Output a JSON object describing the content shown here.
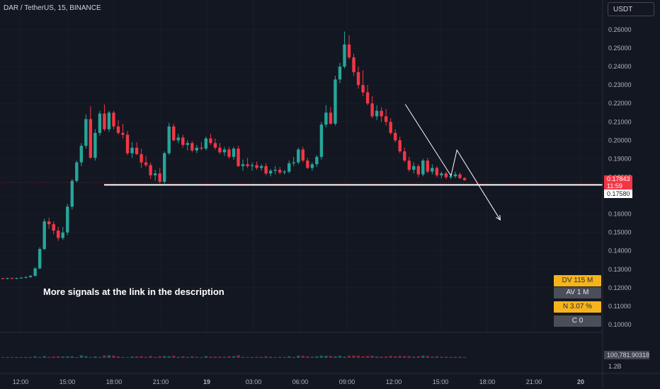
{
  "header": {
    "symbol": "DAR / TetherUS, 15, BINANCE",
    "currency": "USDT"
  },
  "annotation": "More signals at the link in the description",
  "stats": [
    {
      "label": "DV 115 M",
      "color": "#f5b41b"
    },
    {
      "label": "AV 1 M",
      "color": "#4a4e59"
    },
    {
      "label": "N 3.07 %",
      "color": "#f5b41b"
    },
    {
      "label": "C  0",
      "color": "#4a4e59"
    }
  ],
  "price_tags": {
    "current": "0.17843",
    "countdown": "11:59",
    "level": "0.17580"
  },
  "volume": {
    "last": "100,781.90318",
    "axis_max": "1.2B"
  },
  "colors": {
    "background": "#131722",
    "up": "#26a69a",
    "down": "#f23645",
    "grid": "#1e222d",
    "text": "#b2b5be"
  },
  "chart_data": {
    "type": "candlestick",
    "title": "DAR / TetherUS, 15, BINANCE",
    "y_axis": {
      "ticks": [
        "0.26000",
        "0.25000",
        "0.24000",
        "0.23000",
        "0.22000",
        "0.21000",
        "0.20000",
        "0.19000",
        "0.18000",
        "0.17000",
        "0.16000",
        "0.15000",
        "0.14000",
        "0.13000",
        "0.12000",
        "0.11000",
        "0.10000"
      ],
      "range": [
        0.0975,
        0.2655
      ]
    },
    "x_axis": {
      "ticks": [
        "12:00",
        "15:00",
        "18:00",
        "21:00",
        "19",
        "03:00",
        "06:00",
        "09:00",
        "12:00",
        "15:00",
        "18:00",
        "21:00",
        "20"
      ]
    },
    "horizontal_level": 0.1758,
    "projection_path": [
      {
        "t": 34.1,
        "price": 0.2195
      },
      {
        "t": 38.0,
        "price": 0.1807
      },
      {
        "t": 38.5,
        "price": 0.1947
      },
      {
        "t": 42.2,
        "price": 0.1568
      }
    ],
    "ohlc": [
      [
        0.1251,
        0.1254,
        0.1246,
        0.125
      ],
      [
        0.125,
        0.1254,
        0.1246,
        0.1252
      ],
      [
        0.1252,
        0.1256,
        0.1248,
        0.125
      ],
      [
        0.125,
        0.1254,
        0.1246,
        0.1253
      ],
      [
        0.1253,
        0.1258,
        0.1249,
        0.1255
      ],
      [
        0.1255,
        0.1262,
        0.125,
        0.1258
      ],
      [
        0.1258,
        0.1268,
        0.1253,
        0.1265
      ],
      [
        0.1265,
        0.1312,
        0.126,
        0.1305
      ],
      [
        0.1305,
        0.142,
        0.13,
        0.141
      ],
      [
        0.141,
        0.1575,
        0.1405,
        0.156
      ],
      [
        0.156,
        0.158,
        0.152,
        0.1545
      ],
      [
        0.1545,
        0.156,
        0.149,
        0.151
      ],
      [
        0.151,
        0.153,
        0.1455,
        0.147
      ],
      [
        0.147,
        0.153,
        0.146,
        0.15
      ],
      [
        0.15,
        0.1655,
        0.1485,
        0.164
      ],
      [
        0.164,
        0.179,
        0.1625,
        0.178
      ],
      [
        0.178,
        0.189,
        0.177,
        0.188
      ],
      [
        0.188,
        0.1985,
        0.186,
        0.197
      ],
      [
        0.197,
        0.214,
        0.1955,
        0.2115
      ],
      [
        0.2115,
        0.2185,
        0.19,
        0.1905
      ],
      [
        0.1905,
        0.206,
        0.189,
        0.204
      ],
      [
        0.204,
        0.216,
        0.2025,
        0.2145
      ],
      [
        0.2145,
        0.2195,
        0.205,
        0.206
      ],
      [
        0.206,
        0.216,
        0.2045,
        0.215
      ],
      [
        0.215,
        0.216,
        0.206,
        0.2075
      ],
      [
        0.2075,
        0.211,
        0.203,
        0.204
      ],
      [
        0.204,
        0.209,
        0.201,
        0.203
      ],
      [
        0.203,
        0.205,
        0.192,
        0.193
      ],
      [
        0.193,
        0.199,
        0.1905,
        0.196
      ],
      [
        0.196,
        0.199,
        0.192,
        0.1925
      ],
      [
        0.1925,
        0.1955,
        0.185,
        0.188
      ],
      [
        0.188,
        0.1915,
        0.1855,
        0.1865
      ],
      [
        0.1865,
        0.188,
        0.179,
        0.181
      ],
      [
        0.181,
        0.184,
        0.178,
        0.182
      ],
      [
        0.182,
        0.185,
        0.1765,
        0.1775
      ],
      [
        0.1775,
        0.194,
        0.1765,
        0.193
      ],
      [
        0.193,
        0.2095,
        0.192,
        0.2075
      ],
      [
        0.2075,
        0.209,
        0.1995,
        0.2
      ],
      [
        0.2,
        0.2035,
        0.1985,
        0.2015
      ],
      [
        0.2015,
        0.203,
        0.196,
        0.1975
      ],
      [
        0.1975,
        0.2,
        0.1945,
        0.1985
      ],
      [
        0.1985,
        0.1995,
        0.1935,
        0.1945
      ],
      [
        0.1945,
        0.1975,
        0.193,
        0.196
      ],
      [
        0.196,
        0.199,
        0.1945,
        0.1955
      ],
      [
        0.1955,
        0.202,
        0.1945,
        0.201
      ],
      [
        0.201,
        0.2035,
        0.1975,
        0.1985
      ],
      [
        0.1985,
        0.201,
        0.195,
        0.196
      ],
      [
        0.196,
        0.1985,
        0.1925,
        0.1935
      ],
      [
        0.1935,
        0.1965,
        0.1915,
        0.195
      ],
      [
        0.195,
        0.1965,
        0.19,
        0.191
      ],
      [
        0.191,
        0.1965,
        0.1895,
        0.1955
      ],
      [
        0.1955,
        0.197,
        0.1855,
        0.186
      ],
      [
        0.186,
        0.1895,
        0.1835,
        0.187
      ],
      [
        0.187,
        0.1905,
        0.185,
        0.186
      ],
      [
        0.186,
        0.188,
        0.1835,
        0.1865
      ],
      [
        0.1865,
        0.1885,
        0.184,
        0.185
      ],
      [
        0.185,
        0.187,
        0.1835,
        0.186
      ],
      [
        0.186,
        0.1875,
        0.181,
        0.182
      ],
      [
        0.182,
        0.1845,
        0.1805,
        0.1835
      ],
      [
        0.1835,
        0.186,
        0.1815,
        0.184
      ],
      [
        0.184,
        0.1855,
        0.1815,
        0.1825
      ],
      [
        0.1825,
        0.184,
        0.1815,
        0.183
      ],
      [
        0.183,
        0.189,
        0.182,
        0.1875
      ],
      [
        0.1875,
        0.191,
        0.186,
        0.188
      ],
      [
        0.188,
        0.196,
        0.187,
        0.195
      ],
      [
        0.195,
        0.1965,
        0.188,
        0.189
      ],
      [
        0.189,
        0.1905,
        0.1845,
        0.185
      ],
      [
        0.185,
        0.188,
        0.1835,
        0.187
      ],
      [
        0.187,
        0.192,
        0.1855,
        0.191
      ],
      [
        0.191,
        0.21,
        0.1895,
        0.2085
      ],
      [
        0.2085,
        0.219,
        0.207,
        0.215
      ],
      [
        0.215,
        0.218,
        0.2085,
        0.209
      ],
      [
        0.209,
        0.235,
        0.208,
        0.233
      ],
      [
        0.233,
        0.242,
        0.231,
        0.24
      ],
      [
        0.24,
        0.259,
        0.239,
        0.252
      ],
      [
        0.252,
        0.257,
        0.244,
        0.245
      ],
      [
        0.245,
        0.247,
        0.235,
        0.237
      ],
      [
        0.237,
        0.24,
        0.228,
        0.23
      ],
      [
        0.23,
        0.238,
        0.224,
        0.226
      ],
      [
        0.226,
        0.23,
        0.219,
        0.22
      ],
      [
        0.22,
        0.224,
        0.212,
        0.213
      ],
      [
        0.213,
        0.219,
        0.211,
        0.216
      ],
      [
        0.216,
        0.218,
        0.21,
        0.213
      ],
      [
        0.213,
        0.217,
        0.208,
        0.21
      ],
      [
        0.21,
        0.212,
        0.203,
        0.204
      ],
      [
        0.204,
        0.206,
        0.199,
        0.2
      ],
      [
        0.2,
        0.202,
        0.193,
        0.194
      ],
      [
        0.194,
        0.196,
        0.188,
        0.189
      ],
      [
        0.189,
        0.191,
        0.183,
        0.184
      ],
      [
        0.184,
        0.188,
        0.182,
        0.186
      ],
      [
        0.186,
        0.187,
        0.18,
        0.1815
      ],
      [
        0.1815,
        0.19,
        0.1805,
        0.189
      ],
      [
        0.189,
        0.1905,
        0.182,
        0.183
      ],
      [
        0.183,
        0.187,
        0.1815,
        0.185
      ],
      [
        0.185,
        0.186,
        0.18,
        0.181
      ],
      [
        0.181,
        0.183,
        0.1795,
        0.182
      ],
      [
        0.182,
        0.183,
        0.179,
        0.18
      ],
      [
        0.18,
        0.182,
        0.179,
        0.1805
      ],
      [
        0.1805,
        0.183,
        0.1795,
        0.1815
      ],
      [
        0.1815,
        0.1825,
        0.179,
        0.1795
      ],
      [
        0.1795,
        0.18,
        0.178,
        0.1784
      ]
    ],
    "volume_series": "small bars near baseline"
  }
}
